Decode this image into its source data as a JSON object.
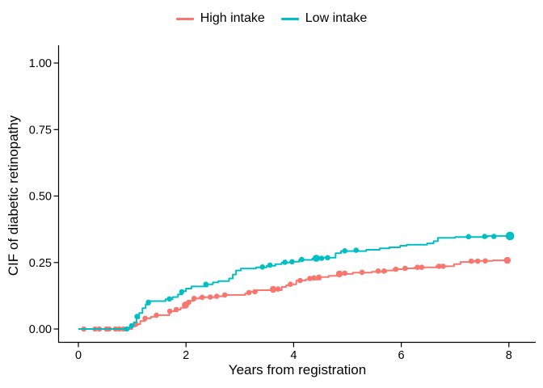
{
  "figure": {
    "background": "#ffffff"
  },
  "legend": {
    "items": [
      {
        "label": "High intake",
        "color": "#F8766D"
      },
      {
        "label": "Low intake",
        "color": "#00BFC4"
      }
    ]
  },
  "chart_data": {
    "type": "line",
    "variant": "step-cumulative-incidence",
    "title": "",
    "xlabel": "Years from registration",
    "ylabel": "CIF of diabetic retinopathy",
    "xlim": [
      0,
      8.2
    ],
    "ylim": [
      0,
      1.0
    ],
    "grid": false,
    "legend_position": "top-center",
    "axis_color": "#000000",
    "x_ticks": {
      "values": [
        0,
        2,
        4,
        6,
        8
      ],
      "labels": [
        "0",
        "2",
        "4",
        "6",
        "8"
      ]
    },
    "y_ticks": {
      "values": [
        0,
        0.25,
        0.5,
        0.75,
        1
      ],
      "labels": [
        "0.00",
        "0.25",
        "0.50",
        "0.75",
        "1.00"
      ]
    },
    "series": [
      {
        "id": "high-intake",
        "name": "High intake",
        "color": "#F8766D",
        "line_width": 2,
        "end_time": 7.97,
        "steps": [
          [
            0,
            0
          ],
          [
            1.0,
            0.01
          ],
          [
            1.06,
            0.018
          ],
          [
            1.15,
            0.03
          ],
          [
            1.24,
            0.04
          ],
          [
            1.35,
            0.046
          ],
          [
            1.44,
            0.052
          ],
          [
            1.69,
            0.067
          ],
          [
            1.81,
            0.073
          ],
          [
            1.9,
            0.08
          ],
          [
            1.97,
            0.088
          ],
          [
            2.02,
            0.096
          ],
          [
            2.08,
            0.106
          ],
          [
            2.15,
            0.115
          ],
          [
            2.25,
            0.119
          ],
          [
            2.55,
            0.123
          ],
          [
            2.7,
            0.128
          ],
          [
            3.1,
            0.134
          ],
          [
            3.2,
            0.14
          ],
          [
            3.32,
            0.146
          ],
          [
            3.78,
            0.158
          ],
          [
            3.86,
            0.164
          ],
          [
            3.95,
            0.168
          ],
          [
            4.05,
            0.182
          ],
          [
            4.22,
            0.186
          ],
          [
            4.5,
            0.195
          ],
          [
            4.65,
            0.2
          ],
          [
            4.85,
            0.207
          ],
          [
            5.1,
            0.212
          ],
          [
            5.45,
            0.215
          ],
          [
            5.72,
            0.22
          ],
          [
            5.85,
            0.225
          ],
          [
            6.05,
            0.228
          ],
          [
            6.25,
            0.232
          ],
          [
            6.65,
            0.236
          ],
          [
            6.98,
            0.244
          ],
          [
            7.1,
            0.252
          ],
          [
            7.35,
            0.256
          ],
          [
            7.7,
            0.258
          ]
        ],
        "markers": [
          [
            0.1,
            0
          ],
          [
            0.31,
            0
          ],
          [
            0.39,
            0
          ],
          [
            0.52,
            0
          ],
          [
            0.57,
            0
          ],
          [
            0.69,
            0
          ],
          [
            0.76,
            0
          ],
          [
            0.84,
            0
          ],
          [
            1.07,
            0.018
          ],
          [
            1.24,
            0.04
          ],
          [
            1.45,
            0.052
          ],
          [
            1.7,
            0.067
          ],
          [
            1.82,
            0.073
          ],
          [
            1.99,
            0.09,
            4.4
          ],
          [
            2.05,
            0.1
          ],
          [
            2.15,
            0.115
          ],
          [
            2.3,
            0.119
          ],
          [
            2.45,
            0.12
          ],
          [
            2.57,
            0.123
          ],
          [
            2.72,
            0.128
          ],
          [
            3.17,
            0.137
          ],
          [
            3.28,
            0.14
          ],
          [
            3.62,
            0.149,
            4.2
          ],
          [
            3.71,
            0.15
          ],
          [
            3.94,
            0.168
          ],
          [
            4.12,
            0.182
          ],
          [
            4.3,
            0.19
          ],
          [
            4.38,
            0.192
          ],
          [
            4.47,
            0.195
          ],
          [
            4.85,
            0.207,
            4.2
          ],
          [
            4.95,
            0.21
          ],
          [
            5.27,
            0.213
          ],
          [
            5.57,
            0.218
          ],
          [
            5.68,
            0.218
          ],
          [
            5.9,
            0.225
          ],
          [
            6.07,
            0.228
          ],
          [
            6.3,
            0.232
          ],
          [
            6.38,
            0.232
          ],
          [
            6.7,
            0.236
          ],
          [
            6.78,
            0.236
          ],
          [
            7.3,
            0.255
          ],
          [
            7.42,
            0.255
          ],
          [
            7.56,
            0.256
          ],
          [
            7.97,
            0.258,
            4.2
          ]
        ]
      },
      {
        "id": "low-intake",
        "name": "Low intake",
        "color": "#00BFC4",
        "line_width": 2,
        "end_time": 8.05,
        "steps": [
          [
            0,
            0
          ],
          [
            0.93,
            0.005
          ],
          [
            0.98,
            0.012
          ],
          [
            1.03,
            0.025
          ],
          [
            1.08,
            0.04
          ],
          [
            1.13,
            0.06
          ],
          [
            1.19,
            0.078
          ],
          [
            1.25,
            0.092
          ],
          [
            1.32,
            0.105
          ],
          [
            1.62,
            0.112
          ],
          [
            1.75,
            0.12
          ],
          [
            1.85,
            0.13
          ],
          [
            1.93,
            0.142
          ],
          [
            2.0,
            0.152
          ],
          [
            2.1,
            0.16
          ],
          [
            2.4,
            0.168
          ],
          [
            2.5,
            0.175
          ],
          [
            2.6,
            0.18
          ],
          [
            2.8,
            0.19
          ],
          [
            2.87,
            0.205
          ],
          [
            2.93,
            0.22
          ],
          [
            3.02,
            0.227
          ],
          [
            3.3,
            0.232
          ],
          [
            3.5,
            0.238
          ],
          [
            3.66,
            0.244
          ],
          [
            3.78,
            0.25
          ],
          [
            3.93,
            0.253
          ],
          [
            4.1,
            0.26
          ],
          [
            4.35,
            0.265
          ],
          [
            4.55,
            0.268
          ],
          [
            4.78,
            0.285
          ],
          [
            4.88,
            0.293
          ],
          [
            5.35,
            0.298
          ],
          [
            5.6,
            0.303
          ],
          [
            5.78,
            0.307
          ],
          [
            5.98,
            0.313
          ],
          [
            6.1,
            0.317
          ],
          [
            6.48,
            0.322
          ],
          [
            6.6,
            0.33
          ],
          [
            6.68,
            0.343
          ],
          [
            7.0,
            0.346
          ],
          [
            7.6,
            0.35
          ]
        ],
        "markers": [
          [
            0.9,
            0
          ],
          [
            0.99,
            0.012
          ],
          [
            1.09,
            0.047
          ],
          [
            1.3,
            0.1
          ],
          [
            1.69,
            0.113
          ],
          [
            1.92,
            0.14
          ],
          [
            2.37,
            0.168
          ],
          [
            3.42,
            0.233
          ],
          [
            3.56,
            0.24
          ],
          [
            3.84,
            0.251
          ],
          [
            3.97,
            0.253
          ],
          [
            4.15,
            0.261
          ],
          [
            4.42,
            0.266,
            4.4
          ],
          [
            4.52,
            0.266
          ],
          [
            4.63,
            0.268
          ],
          [
            4.95,
            0.294
          ],
          [
            5.16,
            0.296
          ],
          [
            7.25,
            0.347
          ],
          [
            7.55,
            0.348
          ],
          [
            7.72,
            0.348
          ],
          [
            8.02,
            0.35,
            5.3
          ]
        ]
      }
    ]
  }
}
